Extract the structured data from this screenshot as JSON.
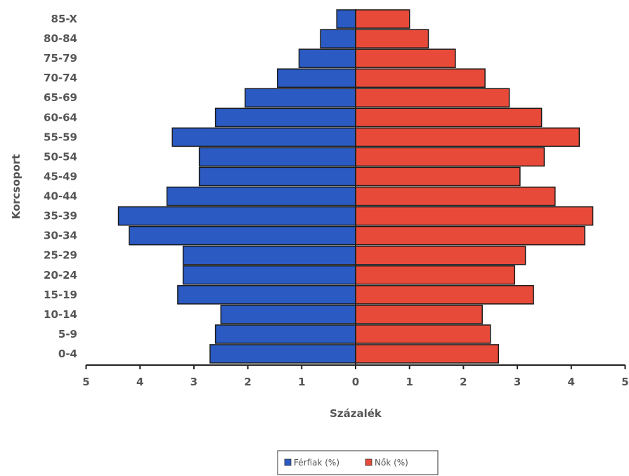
{
  "chart_data": {
    "type": "bar",
    "orientation": "horizontal",
    "layout": "population-pyramid",
    "categories": [
      "0-4",
      "5-9",
      "10-14",
      "15-19",
      "20-24",
      "25-29",
      "30-34",
      "35-39",
      "40-44",
      "45-49",
      "50-54",
      "55-59",
      "60-64",
      "65-69",
      "70-74",
      "75-79",
      "80-84",
      "85-X"
    ],
    "series": [
      {
        "name": "Férfiak (%)",
        "color": "#2a5ac2",
        "side": "left",
        "values": [
          2.7,
          2.6,
          2.5,
          3.3,
          3.2,
          3.2,
          4.2,
          4.4,
          3.5,
          2.9,
          2.9,
          3.4,
          2.6,
          2.05,
          1.45,
          1.05,
          0.65,
          0.35
        ]
      },
      {
        "name": "Nők (%)",
        "color": "#e84a3a",
        "side": "right",
        "values": [
          2.65,
          2.5,
          2.35,
          3.3,
          2.95,
          3.15,
          4.25,
          4.4,
          3.7,
          3.05,
          3.5,
          4.15,
          3.45,
          2.85,
          2.4,
          1.85,
          1.35,
          1.0
        ]
      }
    ],
    "xlabel": "Százalék",
    "ylabel": "Korcsoport",
    "xlim": [
      -5,
      5
    ],
    "x_ticks": [
      "5",
      "4",
      "3",
      "2",
      "1",
      "0",
      "1",
      "2",
      "3",
      "4",
      "5"
    ],
    "grid": false,
    "legend_position": "bottom-center"
  }
}
